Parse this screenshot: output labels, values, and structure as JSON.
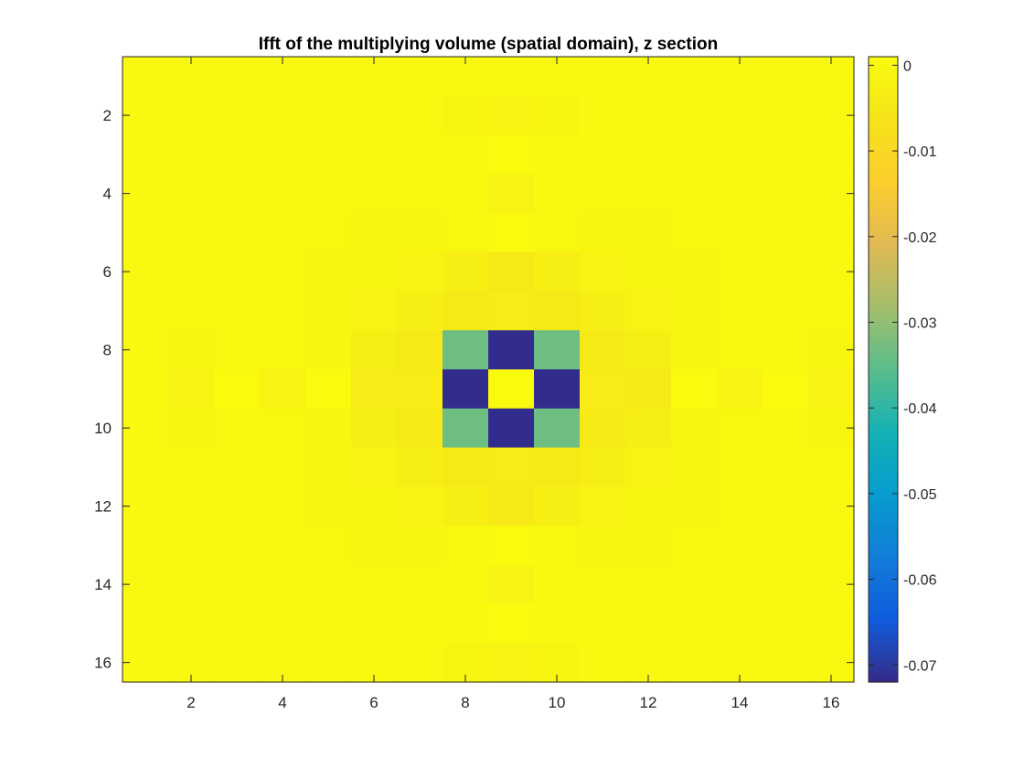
{
  "chart_data": {
    "type": "heatmap",
    "title": "Ifft of the multiplying volume (spatial domain), z section",
    "xlabel": "",
    "ylabel": "",
    "x_range": [
      0.5,
      16.5
    ],
    "y_range": [
      0.5,
      16.5
    ],
    "y_reversed": true,
    "x_ticks": [
      2,
      4,
      6,
      8,
      10,
      12,
      14,
      16
    ],
    "y_ticks": [
      2,
      4,
      6,
      8,
      10,
      12,
      14,
      16
    ],
    "colormap": "parula",
    "colorbar": {
      "range": [
        -0.072,
        0.001
      ],
      "ticks": [
        0,
        -0.01,
        -0.02,
        -0.03,
        -0.04,
        -0.05,
        -0.06,
        -0.07
      ],
      "tick_labels": [
        "0",
        "-0.01",
        "-0.02",
        "-0.03",
        "-0.04",
        "-0.05",
        "-0.06",
        "-0.07"
      ]
    },
    "grid": false,
    "values": [
      [
        0,
        0,
        0,
        0,
        0,
        0,
        0,
        0,
        0,
        0,
        0,
        0,
        0,
        0,
        0,
        0
      ],
      [
        0,
        0,
        0,
        0,
        0,
        0,
        0,
        -0.0008,
        -0.0015,
        -0.0008,
        0,
        0,
        0,
        0,
        0,
        0
      ],
      [
        0,
        0,
        0,
        0,
        0,
        0,
        -0.0003,
        0.0003,
        0.0008,
        0.0003,
        -0.0003,
        0,
        0,
        0,
        0,
        0
      ],
      [
        0,
        0,
        0,
        0,
        0,
        -0.0003,
        -0.0003,
        0,
        -0.0015,
        0,
        -0.0003,
        -0.0003,
        0,
        0,
        0,
        0
      ],
      [
        0,
        0,
        0,
        -0.0003,
        -0.0003,
        -0.0005,
        -0.0005,
        -0.0003,
        0.0008,
        -0.0003,
        -0.0008,
        -0.0005,
        -0.0003,
        -0.0003,
        0,
        0
      ],
      [
        0,
        0,
        0,
        -0.0003,
        -0.0005,
        -0.001,
        -0.0015,
        -0.0025,
        -0.0045,
        -0.0025,
        -0.0015,
        -0.001,
        -0.0005,
        -0.0003,
        0,
        0
      ],
      [
        0,
        0,
        -0.0003,
        -0.0003,
        -0.0008,
        -0.0015,
        -0.0025,
        -0.0045,
        -0.0035,
        -0.0045,
        -0.0025,
        -0.0015,
        -0.0008,
        -0.0003,
        -0.0003,
        0
      ],
      [
        0,
        -0.0008,
        -0.0003,
        -0.0003,
        -0.0005,
        -0.0025,
        -0.0045,
        -0.0335,
        -0.0715,
        -0.0335,
        -0.0045,
        -0.0025,
        -0.0005,
        -0.0003,
        -0.0003,
        -0.0008
      ],
      [
        0.0002,
        -0.0015,
        0.0008,
        -0.0015,
        0.0008,
        -0.0035,
        -0.0035,
        -0.0715,
        0.0008,
        -0.0715,
        -0.0035,
        -0.0045,
        0.0008,
        -0.0015,
        0.0008,
        -0.0015
      ],
      [
        0,
        -0.0008,
        -0.0003,
        -0.0003,
        -0.0005,
        -0.0025,
        -0.0045,
        -0.0335,
        -0.0715,
        -0.0335,
        -0.0045,
        -0.0025,
        -0.0005,
        -0.0003,
        -0.0003,
        -0.0008
      ],
      [
        0,
        0,
        -0.0003,
        -0.0003,
        -0.0008,
        -0.0015,
        -0.0025,
        -0.0045,
        -0.0035,
        -0.0045,
        -0.0025,
        -0.0015,
        -0.0008,
        -0.0003,
        -0.0003,
        0
      ],
      [
        0,
        0,
        0,
        -0.0003,
        -0.0005,
        -0.001,
        -0.0015,
        -0.0025,
        -0.0045,
        -0.0025,
        -0.0015,
        -0.001,
        -0.0005,
        -0.0003,
        0,
        0
      ],
      [
        0,
        0,
        0,
        -0.0003,
        -0.0003,
        -0.0005,
        -0.0005,
        -0.0003,
        0.0008,
        -0.0003,
        -0.0008,
        -0.0005,
        -0.0003,
        -0.0003,
        0,
        0
      ],
      [
        0,
        0,
        0,
        0,
        0,
        -0.0003,
        -0.0003,
        0,
        -0.0015,
        0,
        -0.0003,
        -0.0003,
        0,
        0,
        0,
        0
      ],
      [
        0,
        0,
        0,
        0,
        0,
        0,
        -0.0003,
        0.0003,
        0.0008,
        0.0003,
        -0.0003,
        0,
        0,
        0,
        0,
        0
      ],
      [
        0,
        0,
        0,
        0,
        0,
        0,
        0,
        -0.0008,
        -0.0015,
        -0.0008,
        0,
        0,
        0,
        0,
        0,
        0
      ]
    ]
  }
}
